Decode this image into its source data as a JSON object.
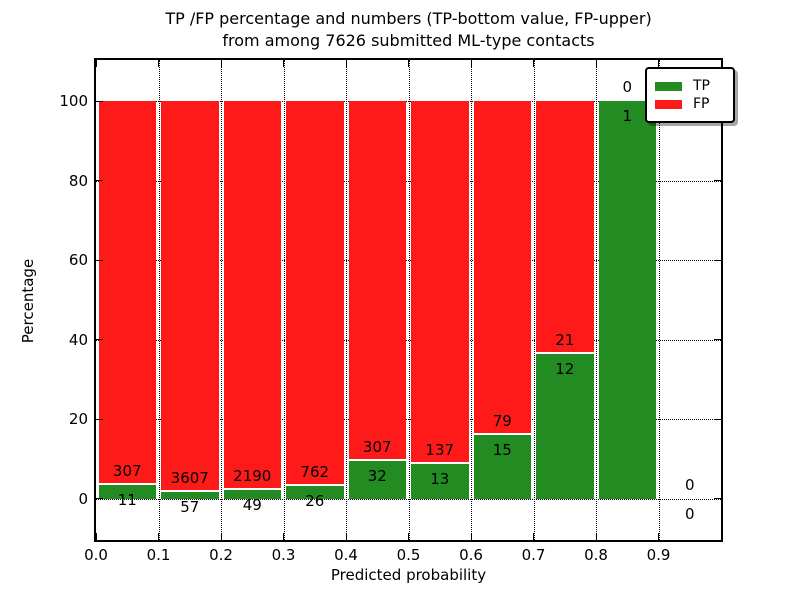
{
  "figure": {
    "title_line1": "TP /FP percentage and numbers (TP-bottom value, FP-upper)",
    "title_line2": "from among 7626 submitted ML-type contacts",
    "xlabel": "Predicted probability",
    "ylabel": "Percentage"
  },
  "legend": {
    "items": [
      {
        "label": "TP",
        "color": "#228b22"
      },
      {
        "label": "FP",
        "color": "#ff1a1a"
      }
    ]
  },
  "chart_data": {
    "type": "bar",
    "stacked": true,
    "title": "TP /FP percentage and numbers (TP-bottom value, FP-upper) from among 7626 submitted ML-type contacts",
    "xlabel": "Predicted probability",
    "ylabel": "Percentage",
    "total_submitted_contacts": 7626,
    "x_tick_labels": [
      "0.0",
      "0.1",
      "0.2",
      "0.3",
      "0.4",
      "0.5",
      "0.6",
      "0.7",
      "0.8",
      "0.9"
    ],
    "y_ticks": [
      0,
      20,
      40,
      60,
      80,
      100
    ],
    "xlim": [
      0.0,
      1.0
    ],
    "ylim": [
      -10.4,
      110.4
    ],
    "grid": "dotted",
    "legend_position": "upper right",
    "colors": {
      "tp": "#228b22",
      "fp": "#ff1a1a"
    },
    "bins": [
      {
        "x_start": 0.0,
        "x_end": 0.1,
        "tp": 11,
        "fp": 307,
        "tp_pct": 3.46,
        "fp_pct": 96.54,
        "has_bar": true
      },
      {
        "x_start": 0.1,
        "x_end": 0.2,
        "tp": 57,
        "fp": 3607,
        "tp_pct": 1.56,
        "fp_pct": 98.44,
        "has_bar": true
      },
      {
        "x_start": 0.2,
        "x_end": 0.3,
        "tp": 49,
        "fp": 2190,
        "tp_pct": 2.19,
        "fp_pct": 97.81,
        "has_bar": true
      },
      {
        "x_start": 0.3,
        "x_end": 0.4,
        "tp": 26,
        "fp": 762,
        "tp_pct": 3.3,
        "fp_pct": 96.7,
        "has_bar": true
      },
      {
        "x_start": 0.4,
        "x_end": 0.5,
        "tp": 32,
        "fp": 307,
        "tp_pct": 9.44,
        "fp_pct": 90.56,
        "has_bar": true
      },
      {
        "x_start": 0.5,
        "x_end": 0.6,
        "tp": 13,
        "fp": 137,
        "tp_pct": 8.67,
        "fp_pct": 91.33,
        "has_bar": true
      },
      {
        "x_start": 0.6,
        "x_end": 0.7,
        "tp": 15,
        "fp": 79,
        "tp_pct": 15.96,
        "fp_pct": 84.04,
        "has_bar": true
      },
      {
        "x_start": 0.7,
        "x_end": 0.8,
        "tp": 12,
        "fp": 21,
        "tp_pct": 36.36,
        "fp_pct": 63.64,
        "has_bar": true
      },
      {
        "x_start": 0.8,
        "x_end": 0.9,
        "tp": 1,
        "fp": 0,
        "tp_pct": 100.0,
        "fp_pct": 0.0,
        "has_bar": true
      },
      {
        "x_start": 0.9,
        "x_end": 1.0,
        "tp": 0,
        "fp": 0,
        "tp_pct": 0.0,
        "fp_pct": 0.0,
        "has_bar": false
      }
    ]
  }
}
